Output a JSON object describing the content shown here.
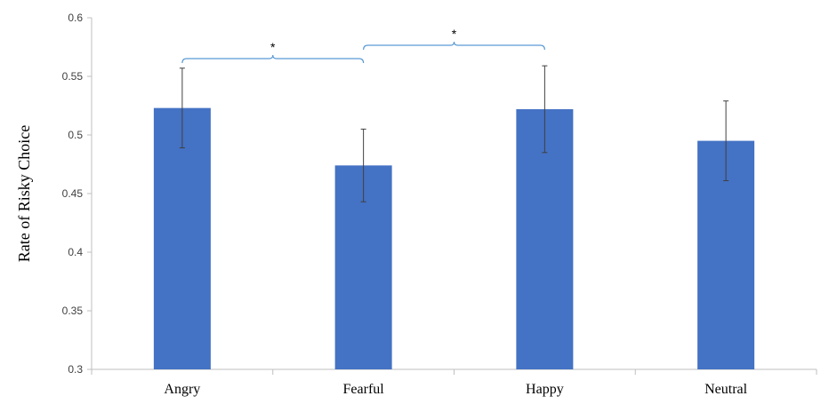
{
  "chart_data": {
    "type": "bar",
    "categories": [
      "Angry",
      "Fearful",
      "Happy",
      "Neutral"
    ],
    "values": [
      0.523,
      0.474,
      0.522,
      0.495
    ],
    "error": [
      0.034,
      0.031,
      0.037,
      0.034
    ],
    "ylabel": "Rate of Risky Choice",
    "xlabel": "",
    "ylim": [
      0.3,
      0.6
    ],
    "yticks": [
      "0.3",
      "0.35",
      "0.4",
      "0.45",
      "0.5",
      "0.55",
      "0.6"
    ],
    "ytick_values": [
      0.3,
      0.35,
      0.4,
      0.45,
      0.5,
      0.55,
      0.6
    ],
    "grid": false,
    "legend": "none",
    "colors": {
      "bar": "#4472c4",
      "bracket": "#5b9bd5",
      "error_bar": "#404040",
      "axis": "#bfbfbf"
    },
    "significance": [
      {
        "from": "Angry",
        "to": "Fearful",
        "label": "*"
      },
      {
        "from": "Fearful",
        "to": "Happy",
        "label": "*"
      }
    ]
  }
}
